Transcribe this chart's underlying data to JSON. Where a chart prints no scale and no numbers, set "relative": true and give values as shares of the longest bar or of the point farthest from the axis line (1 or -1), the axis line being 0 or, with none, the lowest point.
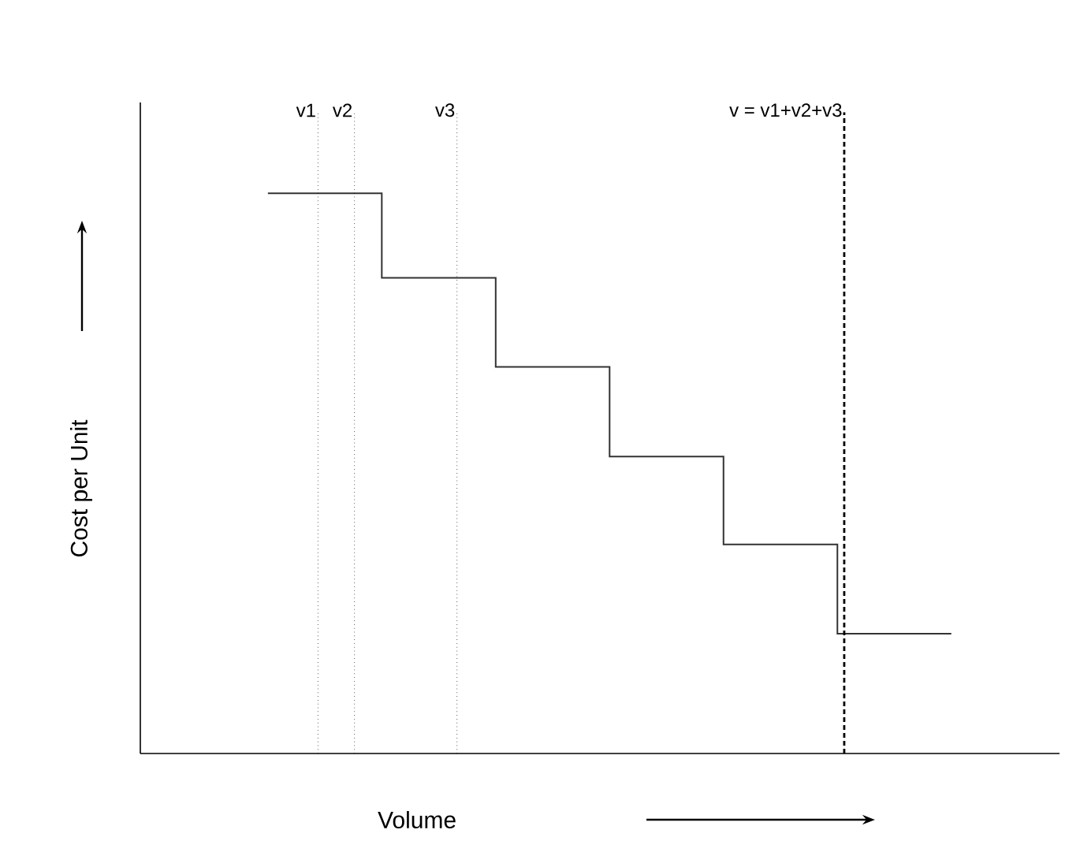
{
  "chart_data": {
    "type": "step",
    "relative": true,
    "xlabel": "Volume",
    "ylabel": "Cost per Unit",
    "categories": [
      null,
      null,
      null,
      null,
      null,
      null,
      null
    ],
    "values": [
      1.0,
      0.849,
      0.69,
      0.53,
      0.373,
      0.214,
      0.214
    ],
    "color": "#333333",
    "ref_lines": [
      {
        "axis": "x",
        "label": "v1",
        "line_style": "dotted"
      },
      {
        "axis": "x",
        "label": "v2",
        "line_style": "dotted"
      },
      {
        "axis": "x",
        "label": "v3",
        "line_style": "dotted"
      },
      {
        "axis": "x",
        "label": "v = v1+v2+v3",
        "line_style": "dashed"
      }
    ]
  }
}
